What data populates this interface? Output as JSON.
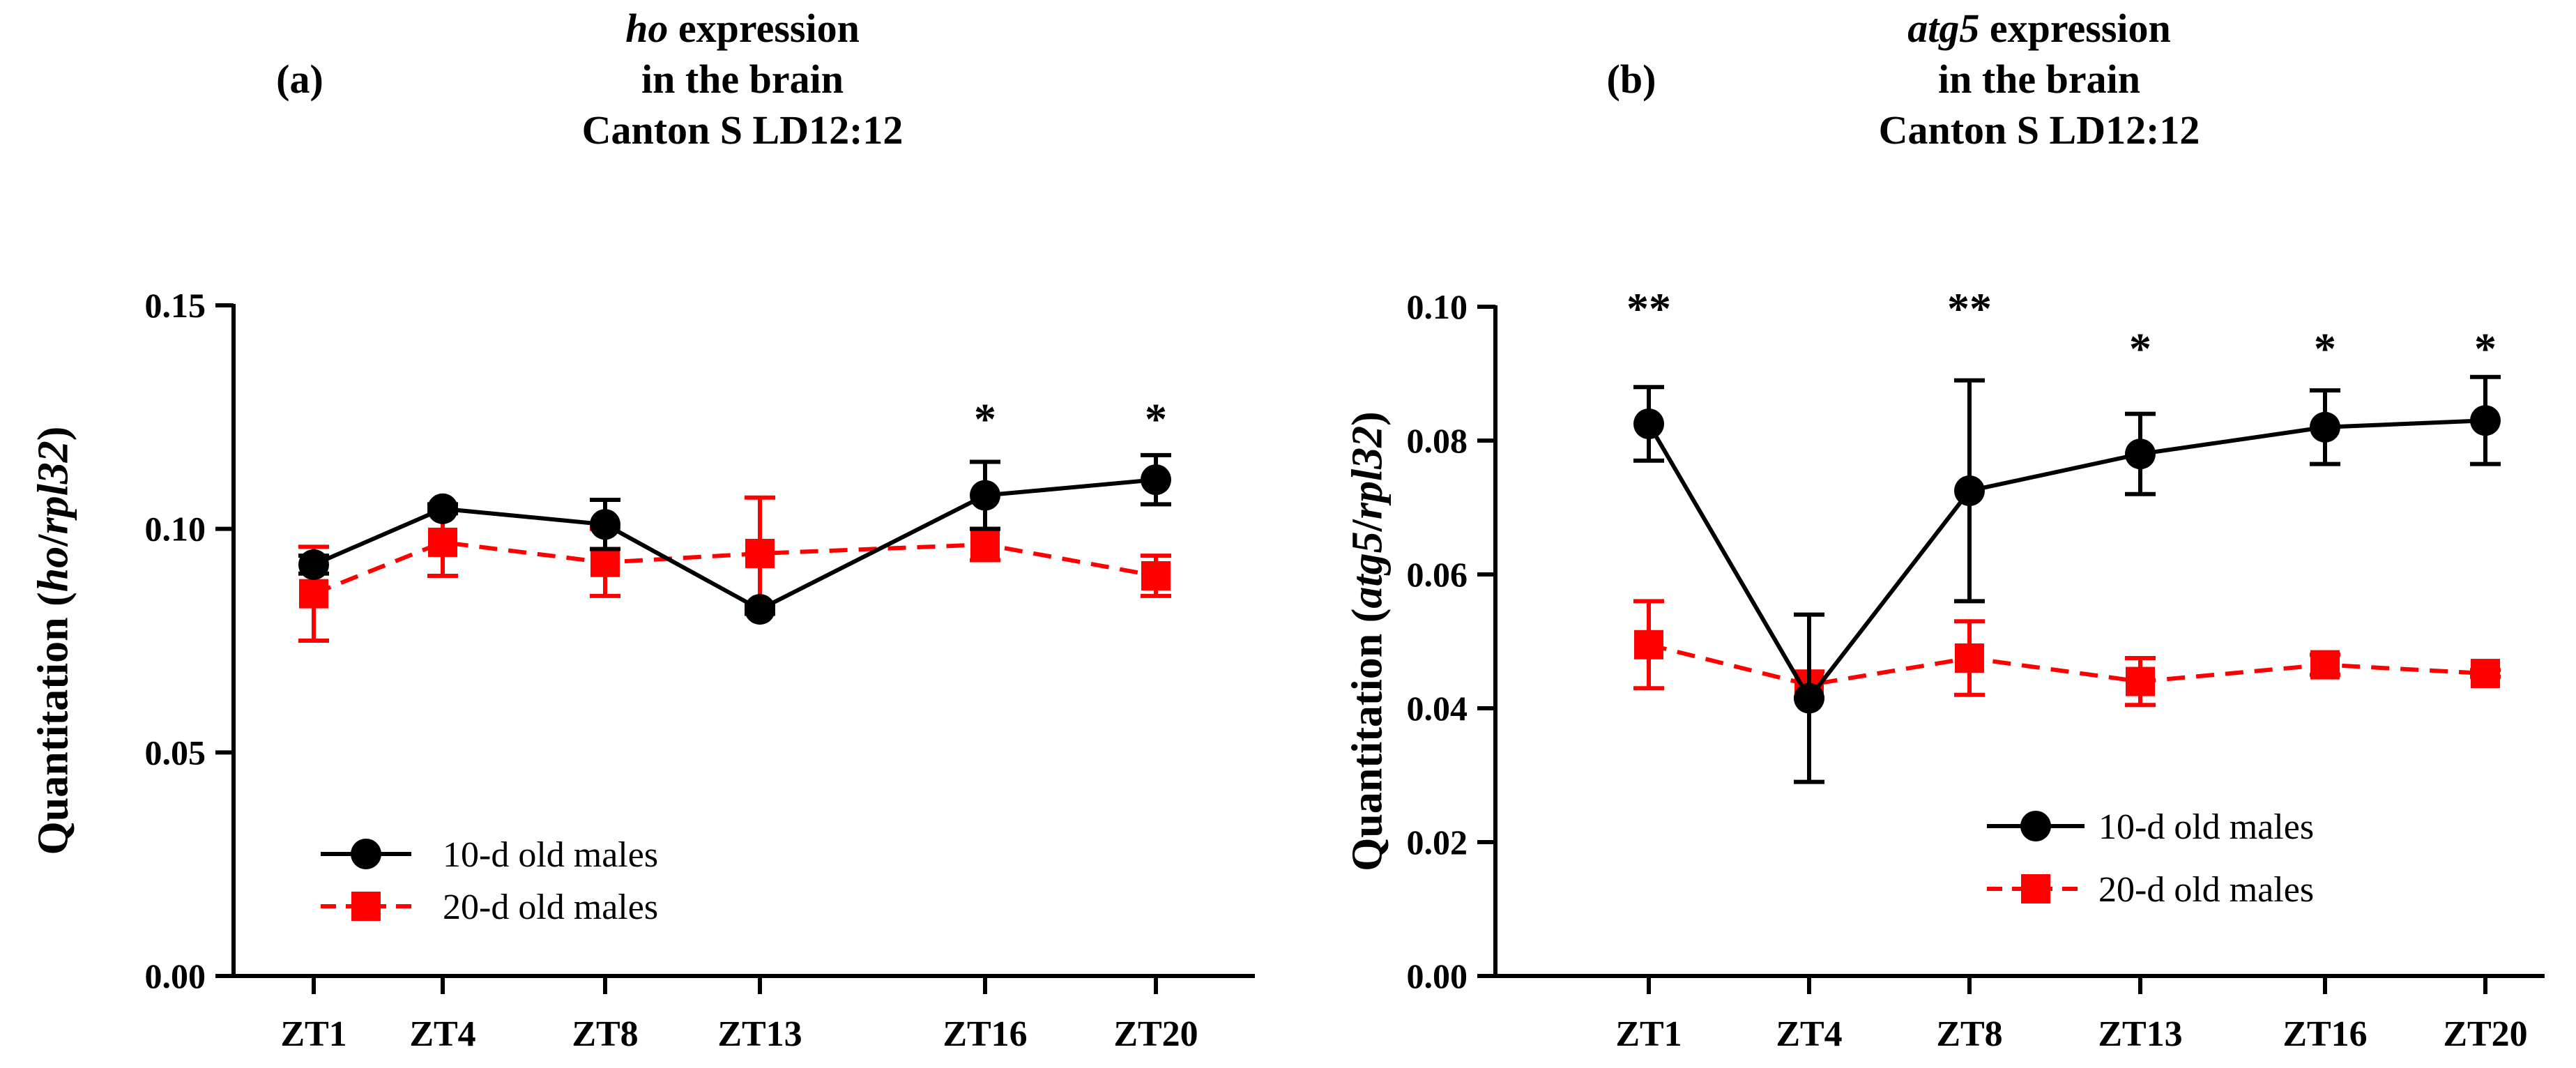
{
  "chart_data": [
    {
      "type": "line",
      "panel_label": "(a)",
      "title_lines": [
        [
          {
            "text": "ho",
            "italic": true
          },
          {
            "text": " expression",
            "italic": false
          }
        ],
        [
          {
            "text": "in the brain",
            "italic": false
          }
        ],
        [
          {
            "text": "Canton S LD12:12",
            "italic": false
          }
        ]
      ],
      "ylabel_parts": [
        {
          "text": "Quantitation (",
          "italic": false
        },
        {
          "text": "ho",
          "italic": true
        },
        {
          "text": "/",
          "italic": false
        },
        {
          "text": "rpl32",
          "italic": true
        },
        {
          "text": ")",
          "italic": false
        }
      ],
      "categories": [
        "ZT1",
        "ZT4",
        "ZT8",
        "ZT13",
        "ZT16",
        "ZT20"
      ],
      "ylim": [
        0,
        0.15
      ],
      "yticks": [
        0,
        0.05,
        0.1,
        0.15
      ],
      "ytick_labels": [
        "0.00",
        "0.05",
        "0.10",
        "0.15"
      ],
      "series": [
        {
          "name": "10-d old males",
          "color": "#000000",
          "marker": "circle",
          "dashed": false,
          "values": [
            0.092,
            0.1045,
            0.101,
            0.082,
            0.1075,
            0.111
          ],
          "errors": [
            0.002,
            0.001,
            0.0055,
            0.001,
            0.0075,
            0.0055
          ]
        },
        {
          "name": "20-d old males",
          "color": "#ff0000",
          "marker": "square",
          "dashed": true,
          "values": [
            0.0855,
            0.097,
            0.0925,
            0.0945,
            0.0965,
            0.0895
          ],
          "errors": [
            0.0105,
            0.0075,
            0.0075,
            0.0125,
            0.0035,
            0.0045
          ]
        }
      ],
      "significance": [
        {
          "category": "ZT16",
          "text": "*",
          "y": 0.125
        },
        {
          "category": "ZT20",
          "text": "*",
          "y": 0.125
        }
      ],
      "legend_position": "bottom-left"
    },
    {
      "type": "line",
      "panel_label": "(b)",
      "title_lines": [
        [
          {
            "text": "atg5",
            "italic": true
          },
          {
            "text": " expression",
            "italic": false
          }
        ],
        [
          {
            "text": "in the brain",
            "italic": false
          }
        ],
        [
          {
            "text": "Canton S LD12:12",
            "italic": false
          }
        ]
      ],
      "ylabel_parts": [
        {
          "text": "Quantitation (",
          "italic": false
        },
        {
          "text": "atg5",
          "italic": true
        },
        {
          "text": "/",
          "italic": false
        },
        {
          "text": "rpl32",
          "italic": true
        },
        {
          "text": ")",
          "italic": false
        }
      ],
      "categories": [
        "ZT1",
        "ZT4",
        "ZT8",
        "ZT13",
        "ZT16",
        "ZT20"
      ],
      "ylim": [
        0,
        0.1
      ],
      "yticks": [
        0,
        0.02,
        0.04,
        0.06,
        0.08,
        0.1
      ],
      "ytick_labels": [
        "0.00",
        "0.02",
        "0.04",
        "0.06",
        "0.08",
        "0.10"
      ],
      "series": [
        {
          "name": "10-d old males",
          "color": "#000000",
          "marker": "circle",
          "dashed": false,
          "values": [
            0.0825,
            0.0415,
            0.0725,
            0.078,
            0.082,
            0.083
          ],
          "errors": [
            0.0055,
            0.0125,
            0.0165,
            0.006,
            0.0055,
            0.0065
          ]
        },
        {
          "name": "20-d old males",
          "color": "#ff0000",
          "marker": "square",
          "dashed": true,
          "values": [
            0.0495,
            0.0435,
            0.0475,
            0.044,
            0.0465,
            0.0452
          ],
          "errors": [
            0.0065,
            0.002,
            0.0055,
            0.0035,
            0.0015,
            0.0005
          ]
        }
      ],
      "significance": [
        {
          "category": "ZT1",
          "text": "**",
          "y": 0.1
        },
        {
          "category": "ZT8",
          "text": "**",
          "y": 0.1
        },
        {
          "category": "ZT13",
          "text": "*",
          "y": 0.094
        },
        {
          "category": "ZT16",
          "text": "*",
          "y": 0.094
        },
        {
          "category": "ZT20",
          "text": "*",
          "y": 0.094
        }
      ],
      "legend_position": "bottom-right"
    }
  ]
}
